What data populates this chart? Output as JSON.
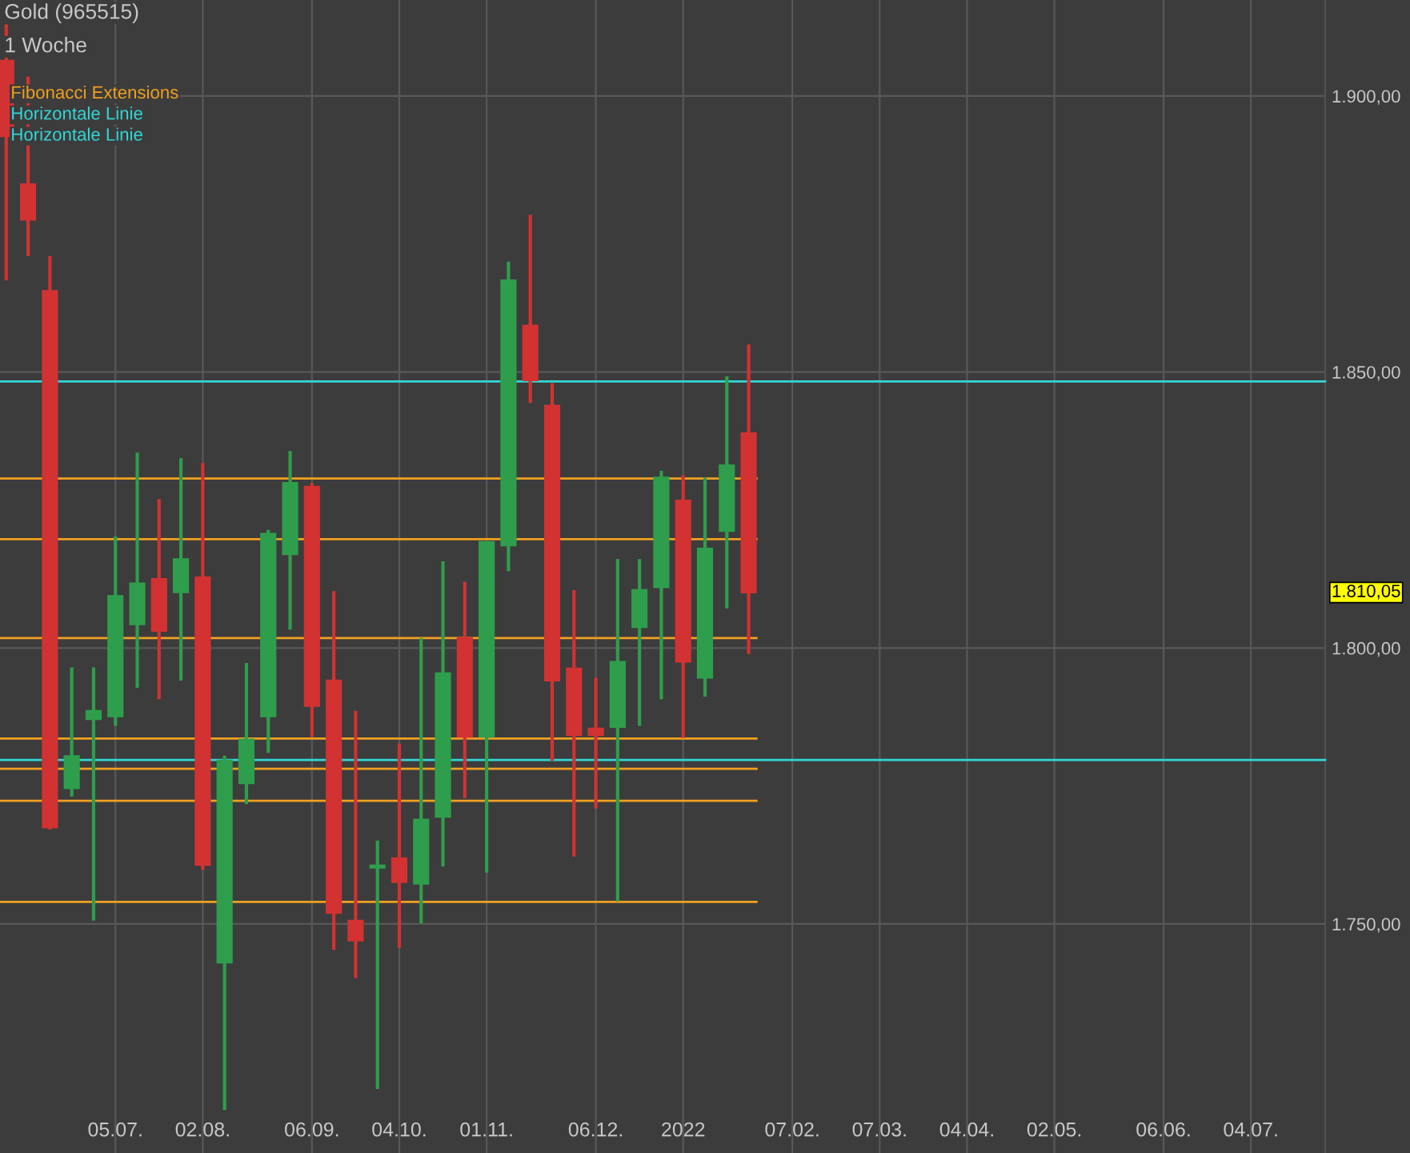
{
  "chart_data": {
    "type": "candlestick",
    "title": "Gold (965515)",
    "subtitle": "1 Woche",
    "x": [
      "2021-05-31",
      "2021-06-07",
      "2021-06-14",
      "2021-06-21",
      "2021-06-28",
      "2021-07-05",
      "2021-07-12",
      "2021-07-19",
      "2021-07-26",
      "2021-08-02",
      "2021-08-09",
      "2021-08-16",
      "2021-08-23",
      "2021-08-30",
      "2021-09-06",
      "2021-09-13",
      "2021-09-20",
      "2021-09-27",
      "2021-10-04",
      "2021-10-11",
      "2021-10-18",
      "2021-10-25",
      "2021-11-01",
      "2021-11-08",
      "2021-11-15",
      "2021-11-22",
      "2021-11-29",
      "2021-12-06",
      "2021-12-13",
      "2021-12-20",
      "2021-12-27",
      "2022-01-03",
      "2022-01-10",
      "2022-01-17",
      "2022-01-24"
    ],
    "ohlc": [
      [
        1906.4,
        1913,
        1866.6,
        1892.7
      ],
      [
        1884.0,
        1903.5,
        1871.0,
        1877.6
      ],
      [
        1864.7,
        1871.0,
        1767.1,
        1767.5
      ],
      [
        1774.6,
        1796.5,
        1773.1,
        1780.4
      ],
      [
        1787.1,
        1796.5,
        1750.6,
        1788.6
      ],
      [
        1787.6,
        1820.2,
        1785.9,
        1809.4
      ],
      [
        1804.3,
        1835.4,
        1792.8,
        1811.7
      ],
      [
        1812.5,
        1827.0,
        1790.7,
        1803.1
      ],
      [
        1810.1,
        1834.4,
        1794.1,
        1816.1
      ],
      [
        1812.8,
        1833.5,
        1759.8,
        1760.7
      ],
      [
        1743.0,
        1780.5,
        1716.3,
        1779.6
      ],
      [
        1775.5,
        1797.3,
        1771.7,
        1783.4
      ],
      [
        1787.6,
        1821.4,
        1781.0,
        1820.7
      ],
      [
        1817.0,
        1835.7,
        1803.3,
        1829.9
      ],
      [
        1829.2,
        1829.9,
        1783.9,
        1789.5
      ],
      [
        1794.1,
        1810.3,
        1745.3,
        1752.0
      ],
      [
        1750.6,
        1788.6,
        1740.2,
        1747.0
      ],
      [
        1760.2,
        1765.1,
        1720.1,
        1760.6
      ],
      [
        1761.9,
        1782.7,
        1745.7,
        1757.6
      ],
      [
        1757.3,
        1801.8,
        1750.1,
        1768.9
      ],
      [
        1769.4,
        1815.7,
        1760.4,
        1795.4
      ],
      [
        1801.8,
        1812.0,
        1772.8,
        1783.9
      ],
      [
        1783.9,
        1819.3,
        1759.3,
        1819.2
      ],
      [
        1818.6,
        1870.0,
        1813.9,
        1866.6
      ],
      [
        1858.4,
        1878.5,
        1844.4,
        1848.5
      ],
      [
        1843.9,
        1848.0,
        1779.6,
        1794.1
      ],
      [
        1796.3,
        1810.5,
        1762.2,
        1784.2
      ],
      [
        1785.4,
        1794.6,
        1770.9,
        1784.2
      ],
      [
        1785.7,
        1816.1,
        1754.1,
        1797.5
      ],
      [
        1803.8,
        1816.1,
        1785.9,
        1810.5
      ],
      [
        1811.0,
        1832.1,
        1790.7,
        1830.9
      ],
      [
        1826.7,
        1831.3,
        1783.7,
        1797.5
      ],
      [
        1794.6,
        1830.9,
        1791.2,
        1818.0
      ],
      [
        1821.2,
        1849.2,
        1807.2,
        1833.1
      ],
      [
        1838.9,
        1855.0,
        1798.9,
        1810.05
      ]
    ],
    "xlim": [
      "2021-05-29",
      "2022-08-24"
    ],
    "xticks": [
      {
        "value": "2021-07-05",
        "label": "05.07."
      },
      {
        "value": "2021-08-02",
        "label": "02.08."
      },
      {
        "value": "2021-09-06",
        "label": "06.09."
      },
      {
        "value": "2021-10-04",
        "label": "04.10."
      },
      {
        "value": "2021-11-01",
        "label": "01.11."
      },
      {
        "value": "2021-12-06",
        "label": "06.12."
      },
      {
        "value": "2022-01-03",
        "label": "2022"
      },
      {
        "value": "2022-02-07",
        "label": "07.02."
      },
      {
        "value": "2022-03-07",
        "label": "07.03."
      },
      {
        "value": "2022-04-04",
        "label": "04.04."
      },
      {
        "value": "2022-05-02",
        "label": "02.05."
      },
      {
        "value": "2022-06-06",
        "label": "06.06."
      },
      {
        "value": "2022-07-04",
        "label": "04.07."
      }
    ],
    "ylim": [
      1708.5,
      1917.4
    ],
    "yticks": [
      {
        "value": 1750,
        "label": "1.750,00"
      },
      {
        "value": 1800,
        "label": "1.800,00"
      },
      {
        "value": 1850,
        "label": "1.850,00"
      },
      {
        "value": 1900,
        "label": "1.900,00"
      }
    ],
    "ref_lines": [
      {
        "axis": "y",
        "value": 1830.7,
        "label": "Fibonacci Extensions",
        "color": "#f0a020"
      },
      {
        "axis": "y",
        "value": 1819.7,
        "color": "#f0a020"
      },
      {
        "axis": "y",
        "value": 1801.8,
        "color": "#f0a020"
      },
      {
        "axis": "y",
        "value": 1783.6,
        "color": "#f0a020"
      },
      {
        "axis": "y",
        "value": 1778.1,
        "color": "#f0a020"
      },
      {
        "axis": "y",
        "value": 1772.3,
        "color": "#f0a020"
      },
      {
        "axis": "y",
        "value": 1754.0,
        "color": "#f0a020"
      },
      {
        "axis": "y",
        "value": 1848.3,
        "label": "Horizontale Linie",
        "color": "#33d6d6"
      },
      {
        "axis": "y",
        "value": 1779.7,
        "label": "Horizontale Linie",
        "color": "#33d6d6"
      }
    ],
    "annotations": [
      "1.810,05"
    ],
    "grid": true,
    "legend": "top left"
  }
}
